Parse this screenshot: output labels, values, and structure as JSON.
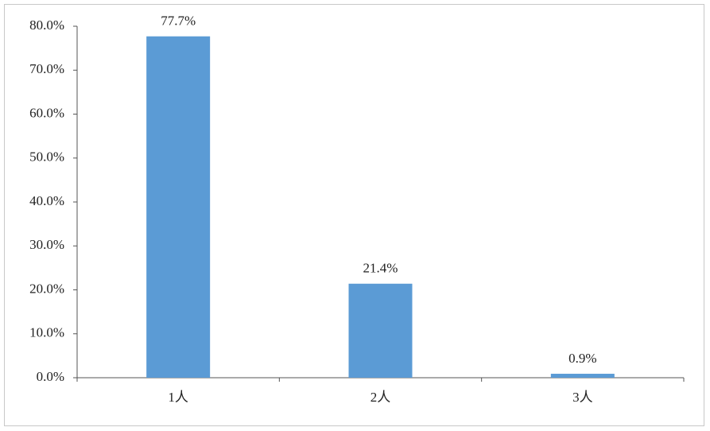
{
  "chart_data": {
    "type": "bar",
    "categories": [
      "1人",
      "2人",
      "3人"
    ],
    "values": [
      77.7,
      21.4,
      0.9
    ],
    "value_labels": [
      "77.7%",
      "21.4%",
      "0.9%"
    ],
    "color": "#5b9bd5",
    "ylim": [
      0,
      80
    ],
    "yticks": [
      {
        "value": 0,
        "label": "0.0%"
      },
      {
        "value": 10,
        "label": "10.0%"
      },
      {
        "value": 20,
        "label": "20.0%"
      },
      {
        "value": 30,
        "label": "30.0%"
      },
      {
        "value": 40,
        "label": "40.0%"
      },
      {
        "value": 50,
        "label": "50.0%"
      },
      {
        "value": 60,
        "label": "60.0%"
      },
      {
        "value": 70,
        "label": "70.0%"
      },
      {
        "value": 80,
        "label": "80.0%"
      }
    ],
    "grid": false
  }
}
